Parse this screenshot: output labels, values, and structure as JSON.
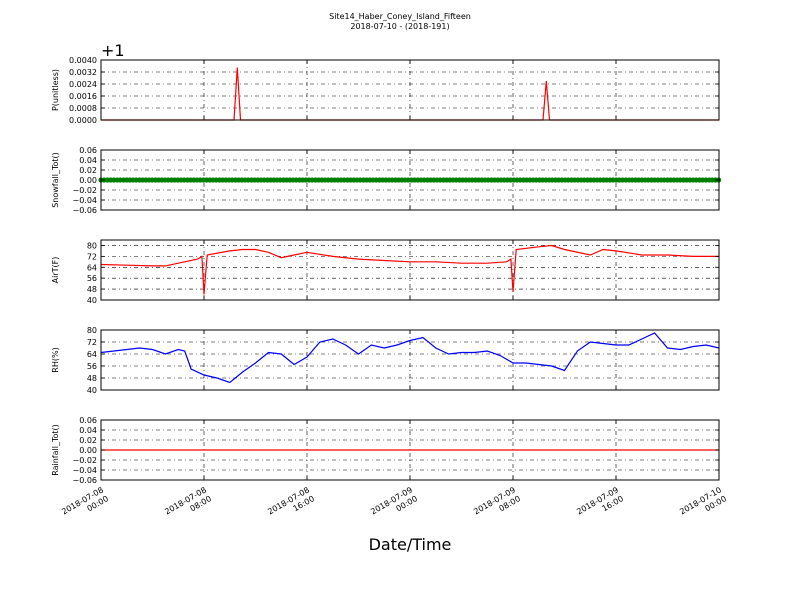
{
  "figure": {
    "title_line1": "Site14_Haber_Coney_Island_Fifteen",
    "title_line2": "2018-07-10 - (2018-191)",
    "xlabel": "Date/Time"
  },
  "chart_data": [
    {
      "type": "line",
      "ylabel": "P(unitless)",
      "offset_label": "+1",
      "ylim": [
        0.0,
        0.004
      ],
      "yticks": [
        "0.0000",
        "0.0008",
        "0.0016",
        "0.0024",
        "0.0032",
        "0.0040"
      ],
      "grid": true,
      "color": "#ff0000",
      "x": [
        "2018-07-08 00:00",
        "2018-07-08 10:20",
        "2018-07-08 10:35",
        "2018-07-08 10:50",
        "2018-07-09 10:20",
        "2018-07-09 10:35",
        "2018-07-09 10:50",
        "2018-07-10 00:00"
      ],
      "values": [
        0.0,
        0.0,
        0.0035,
        0.0,
        0.0,
        0.0026,
        0.0,
        0.0
      ]
    },
    {
      "type": "line",
      "ylabel": "Snowfall_Tot()",
      "ylim": [
        -0.06,
        0.06
      ],
      "yticks": [
        "−0.06",
        "−0.04",
        "−0.02",
        "0.00",
        "0.02",
        "0.04",
        "0.06"
      ],
      "grid": true,
      "color": "#008000",
      "marker": true,
      "x": [
        "2018-07-08 00:00",
        "2018-07-10 00:00"
      ],
      "values": [
        0.0,
        0.0
      ]
    },
    {
      "type": "line",
      "ylabel": "AirT(F)",
      "ylim": [
        40,
        84
      ],
      "yticks": [
        "40",
        "48",
        "56",
        "64",
        "72",
        "80"
      ],
      "grid": true,
      "color": "#ff0000",
      "x": [
        "2018-07-08 00:00",
        "2018-07-08 02:00",
        "2018-07-08 04:00",
        "2018-07-08 05:00",
        "2018-07-08 06:00",
        "2018-07-08 07:30",
        "2018-07-08 07:50",
        "2018-07-08 08:00",
        "2018-07-08 08:15",
        "2018-07-08 10:00",
        "2018-07-08 11:00",
        "2018-07-08 12:00",
        "2018-07-08 13:00",
        "2018-07-08 14:00",
        "2018-07-08 15:00",
        "2018-07-08 16:00",
        "2018-07-08 18:00",
        "2018-07-08 20:00",
        "2018-07-08 22:00",
        "2018-07-09 00:00",
        "2018-07-09 02:00",
        "2018-07-09 04:00",
        "2018-07-09 06:00",
        "2018-07-09 07:30",
        "2018-07-09 07:50",
        "2018-07-09 08:00",
        "2018-07-09 08:15",
        "2018-07-09 10:00",
        "2018-07-09 11:00",
        "2018-07-09 12:00",
        "2018-07-09 14:00",
        "2018-07-09 15:00",
        "2018-07-09 16:00",
        "2018-07-09 18:00",
        "2018-07-09 20:00",
        "2018-07-09 22:00",
        "2018-07-10 00:00"
      ],
      "values": [
        66,
        65.5,
        65,
        65,
        67,
        70,
        72,
        44,
        73,
        76,
        77,
        77,
        75,
        71,
        73,
        75,
        72,
        70,
        69,
        68,
        68,
        67,
        67,
        68,
        70,
        46,
        77,
        79,
        80,
        77,
        73,
        77,
        76,
        73,
        73,
        72,
        72
      ]
    },
    {
      "type": "line",
      "ylabel": "RH(%)",
      "ylim": [
        40,
        80
      ],
      "yticks": [
        "40",
        "48",
        "56",
        "64",
        "72",
        "80"
      ],
      "grid": true,
      "color": "#0000ff",
      "x": [
        "2018-07-08 00:00",
        "2018-07-08 02:00",
        "2018-07-08 03:00",
        "2018-07-08 04:00",
        "2018-07-08 05:00",
        "2018-07-08 06:00",
        "2018-07-08 06:30",
        "2018-07-08 07:00",
        "2018-07-08 08:00",
        "2018-07-08 09:00",
        "2018-07-08 10:00",
        "2018-07-08 11:00",
        "2018-07-08 12:00",
        "2018-07-08 13:00",
        "2018-07-08 14:00",
        "2018-07-08 15:00",
        "2018-07-08 16:00",
        "2018-07-08 17:00",
        "2018-07-08 18:00",
        "2018-07-08 19:00",
        "2018-07-08 20:00",
        "2018-07-08 21:00",
        "2018-07-08 22:00",
        "2018-07-08 23:00",
        "2018-07-09 00:00",
        "2018-07-09 01:00",
        "2018-07-09 02:00",
        "2018-07-09 03:00",
        "2018-07-09 04:00",
        "2018-07-09 05:00",
        "2018-07-09 06:00",
        "2018-07-09 07:00",
        "2018-07-09 08:00",
        "2018-07-09 09:00",
        "2018-07-09 10:00",
        "2018-07-09 11:00",
        "2018-07-09 12:00",
        "2018-07-09 13:00",
        "2018-07-09 14:00",
        "2018-07-09 15:00",
        "2018-07-09 16:00",
        "2018-07-09 17:00",
        "2018-07-09 18:00",
        "2018-07-09 19:00",
        "2018-07-09 20:00",
        "2018-07-09 21:00",
        "2018-07-09 22:00",
        "2018-07-09 23:00",
        "2018-07-10 00:00"
      ],
      "values": [
        65,
        67,
        68,
        67,
        64,
        67,
        66,
        54,
        50,
        48,
        45,
        52,
        58,
        65,
        64,
        57,
        62,
        72,
        74,
        70,
        64,
        70,
        68,
        70,
        73,
        75,
        68,
        64,
        65,
        65,
        66,
        63,
        58,
        58,
        57,
        56,
        53,
        66,
        72,
        71,
        70,
        70,
        74,
        78,
        68,
        67,
        69,
        70,
        68
      ]
    },
    {
      "type": "line",
      "ylabel": "Rainfall_Tot()",
      "ylim": [
        -0.06,
        0.06
      ],
      "yticks": [
        "−0.06",
        "−0.04",
        "−0.02",
        "0.00",
        "0.02",
        "0.04",
        "0.06"
      ],
      "grid": true,
      "color": "#ff0000",
      "x": [
        "2018-07-08 00:00",
        "2018-07-10 00:00"
      ],
      "values": [
        0.0,
        0.0
      ]
    }
  ],
  "x_axis": {
    "range": [
      "2018-07-08 00:00",
      "2018-07-10 00:00"
    ],
    "ticks": [
      {
        "value": "2018-07-08 00:00",
        "date": "2018-07-08",
        "time": "00:00"
      },
      {
        "value": "2018-07-08 08:00",
        "date": "2018-07-08",
        "time": "08:00"
      },
      {
        "value": "2018-07-08 16:00",
        "date": "2018-07-08",
        "time": "16:00"
      },
      {
        "value": "2018-07-09 00:00",
        "date": "2018-07-09",
        "time": "00:00"
      },
      {
        "value": "2018-07-09 08:00",
        "date": "2018-07-09",
        "time": "08:00"
      },
      {
        "value": "2018-07-09 16:00",
        "date": "2018-07-09",
        "time": "16:00"
      },
      {
        "value": "2018-07-10 00:00",
        "date": "2018-07-10",
        "time": "00:00"
      }
    ]
  }
}
